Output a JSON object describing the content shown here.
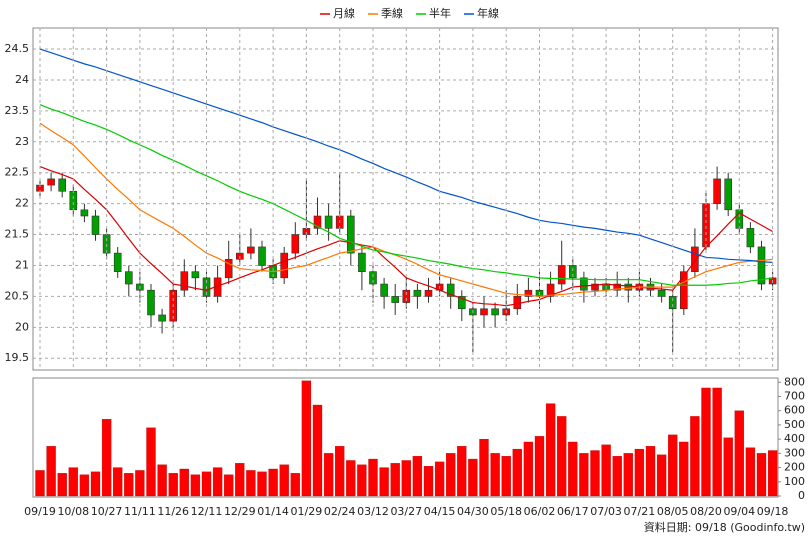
{
  "chart_data": [
    {
      "type": "candlestick",
      "open": [
        22.2,
        22.3,
        22.4,
        22.2,
        21.9,
        21.8,
        21.5,
        21.2,
        20.9,
        20.7,
        20.6,
        20.2,
        20.1,
        20.6,
        20.9,
        20.8,
        20.5,
        20.8,
        21.1,
        21.2,
        21.3,
        21.0,
        20.8,
        21.2,
        21.5,
        21.6,
        21.8,
        21.6,
        21.8,
        21.2,
        20.9,
        20.7,
        20.5,
        20.4,
        20.6,
        20.5,
        20.6,
        20.7,
        20.5,
        20.3,
        20.2,
        20.3,
        20.2,
        20.3,
        20.5,
        20.6,
        20.5,
        20.7,
        21.0,
        20.8,
        20.6,
        20.7,
        20.6,
        20.7,
        20.6,
        20.7,
        20.6,
        20.5,
        20.3,
        20.9,
        21.3,
        22.0,
        22.4,
        21.9,
        21.6,
        21.3,
        20.7
      ],
      "high": [
        22.4,
        22.5,
        22.5,
        22.3,
        22.0,
        21.9,
        21.6,
        21.3,
        21.0,
        20.9,
        20.7,
        20.3,
        20.7,
        21.1,
        21.0,
        20.9,
        21.0,
        21.4,
        21.5,
        21.6,
        21.4,
        21.1,
        21.3,
        21.7,
        22.4,
        22.1,
        22.0,
        22.5,
        21.9,
        21.3,
        21.0,
        20.8,
        20.7,
        20.8,
        20.7,
        20.8,
        20.9,
        20.8,
        20.6,
        20.4,
        20.5,
        20.4,
        20.6,
        20.7,
        20.8,
        20.9,
        20.9,
        21.4,
        21.1,
        20.9,
        20.8,
        20.8,
        20.9,
        20.8,
        20.9,
        20.8,
        20.7,
        20.6,
        21.0,
        21.6,
        22.2,
        22.6,
        22.5,
        22.0,
        21.7,
        21.4,
        20.9
      ],
      "low": [
        22.1,
        22.2,
        22.1,
        21.8,
        21.7,
        21.4,
        21.1,
        20.8,
        20.5,
        20.4,
        20.0,
        19.9,
        20.0,
        20.5,
        20.6,
        20.4,
        20.4,
        20.7,
        21.0,
        21.1,
        20.9,
        20.7,
        20.7,
        21.1,
        21.4,
        21.5,
        21.4,
        21.5,
        21.0,
        20.6,
        20.4,
        20.3,
        20.2,
        20.3,
        20.3,
        20.4,
        20.5,
        20.3,
        20.1,
        19.6,
        20.0,
        20.0,
        20.1,
        20.2,
        20.4,
        20.3,
        20.4,
        20.6,
        20.6,
        20.4,
        20.5,
        20.5,
        20.5,
        20.4,
        20.5,
        20.5,
        20.4,
        19.6,
        20.2,
        20.8,
        21.2,
        21.9,
        21.8,
        21.5,
        21.2,
        20.6,
        20.6
      ],
      "close": [
        22.3,
        22.4,
        22.2,
        21.9,
        21.8,
        21.5,
        21.2,
        20.9,
        20.7,
        20.6,
        20.2,
        20.1,
        20.6,
        20.9,
        20.8,
        20.5,
        20.8,
        21.1,
        21.2,
        21.3,
        21.0,
        20.8,
        21.2,
        21.5,
        21.6,
        21.8,
        21.6,
        21.8,
        21.2,
        20.9,
        20.7,
        20.5,
        20.4,
        20.6,
        20.5,
        20.6,
        20.7,
        20.5,
        20.3,
        20.2,
        20.3,
        20.2,
        20.3,
        20.5,
        20.6,
        20.5,
        20.7,
        21.0,
        20.8,
        20.6,
        20.7,
        20.6,
        20.7,
        20.6,
        20.7,
        20.6,
        20.5,
        20.3,
        20.9,
        21.3,
        22.0,
        22.4,
        21.9,
        21.6,
        21.3,
        20.7,
        20.8
      ],
      "up_color": "#ff0000",
      "down_color": "#00a000",
      "series": [
        {
          "name": "月線",
          "color": "#dd0000",
          "values": [
            22.6,
            22.53,
            22.47,
            22.4,
            22.23,
            22.07,
            21.9,
            21.67,
            21.43,
            21.2,
            21.03,
            20.87,
            20.7,
            20.67,
            20.63,
            20.6,
            20.67,
            20.73,
            20.8,
            20.87,
            20.93,
            21.0,
            21.07,
            21.13,
            21.2,
            21.27,
            21.33,
            21.4,
            21.37,
            21.33,
            21.3,
            21.13,
            20.97,
            20.8,
            20.73,
            20.67,
            20.6,
            20.53,
            20.47,
            20.4,
            20.38,
            20.37,
            20.35,
            20.38,
            20.42,
            20.45,
            20.52,
            20.58,
            20.65,
            20.67,
            20.68,
            20.7,
            20.68,
            20.67,
            20.65,
            20.63,
            20.62,
            20.6,
            20.83,
            21.07,
            21.3,
            21.48,
            21.67,
            21.85,
            21.75,
            21.65,
            21.55
          ]
        },
        {
          "name": "季線",
          "color": "#ff7700",
          "values": [
            23.3,
            23.18,
            23.07,
            22.95,
            22.77,
            22.58,
            22.4,
            22.23,
            22.07,
            21.9,
            21.8,
            21.7,
            21.6,
            21.47,
            21.33,
            21.2,
            21.12,
            21.03,
            20.95,
            20.93,
            20.92,
            20.9,
            20.93,
            20.97,
            21.0,
            21.07,
            21.13,
            21.2,
            21.23,
            21.27,
            21.3,
            21.23,
            21.17,
            21.1,
            21.02,
            20.93,
            20.85,
            20.8,
            20.75,
            20.7,
            20.65,
            20.6,
            20.55,
            20.53,
            20.52,
            20.5,
            20.52,
            20.53,
            20.55,
            20.57,
            20.58,
            20.6,
            20.62,
            20.63,
            20.65,
            20.65,
            20.65,
            20.65,
            20.73,
            20.82,
            20.9,
            20.95,
            21.0,
            21.05,
            21.07,
            21.08,
            21.1
          ]
        },
        {
          "name": "半年",
          "color": "#00cc00",
          "values": [
            23.6,
            23.53,
            23.47,
            23.4,
            23.33,
            23.27,
            23.2,
            23.12,
            23.03,
            22.95,
            22.87,
            22.78,
            22.7,
            22.62,
            22.53,
            22.45,
            22.37,
            22.28,
            22.2,
            22.13,
            22.07,
            22.0,
            21.91,
            21.82,
            21.73,
            21.63,
            21.54,
            21.44,
            21.38,
            21.31,
            21.25,
            21.22,
            21.18,
            21.15,
            21.12,
            21.08,
            21.05,
            21.02,
            20.98,
            20.95,
            20.93,
            20.9,
            20.88,
            20.85,
            20.83,
            20.8,
            20.79,
            20.79,
            20.78,
            20.78,
            20.77,
            20.77,
            20.77,
            20.77,
            20.77,
            20.74,
            20.71,
            20.68,
            20.68,
            20.68,
            20.68,
            20.69,
            20.71,
            20.72,
            20.75,
            20.77,
            20.8
          ]
        },
        {
          "name": "年線",
          "color": "#0055cc",
          "values": [
            24.5,
            24.44,
            24.38,
            24.32,
            24.26,
            24.21,
            24.15,
            24.09,
            24.03,
            23.97,
            23.91,
            23.85,
            23.79,
            23.73,
            23.67,
            23.61,
            23.55,
            23.49,
            23.43,
            23.37,
            23.31,
            23.24,
            23.18,
            23.12,
            23.06,
            23.0,
            22.93,
            22.87,
            22.8,
            22.72,
            22.65,
            22.57,
            22.5,
            22.43,
            22.35,
            22.28,
            22.2,
            22.15,
            22.1,
            22.04,
            21.99,
            21.94,
            21.89,
            21.84,
            21.78,
            21.73,
            21.7,
            21.68,
            21.65,
            21.62,
            21.6,
            21.57,
            21.54,
            21.52,
            21.49,
            21.43,
            21.37,
            21.31,
            21.25,
            21.19,
            21.13,
            21.12,
            21.1,
            21.09,
            21.08,
            21.06,
            21.05
          ]
        }
      ],
      "ylim": [
        19.31,
        24.84
      ],
      "yticks": [
        19.5,
        20,
        20.5,
        21,
        21.5,
        22,
        22.5,
        23,
        23.5,
        24,
        24.5
      ],
      "grid": true
    },
    {
      "type": "bar",
      "categories": [
        "09/19",
        null,
        null,
        "10/08",
        null,
        null,
        "10/27",
        null,
        null,
        "11/11",
        null,
        null,
        "11/26",
        null,
        null,
        "12/11",
        null,
        null,
        "12/29",
        null,
        null,
        "01/14",
        null,
        null,
        "01/29",
        null,
        null,
        "02/24",
        null,
        null,
        "03/12",
        null,
        null,
        "03/27",
        null,
        null,
        "04/15",
        null,
        null,
        "04/30",
        null,
        null,
        "05/18",
        null,
        null,
        "06/02",
        null,
        null,
        "06/17",
        null,
        null,
        "07/03",
        null,
        null,
        "07/21",
        null,
        null,
        "08/05",
        null,
        null,
        "08/20",
        null,
        null,
        "09/04",
        null,
        null,
        "09/18"
      ],
      "values": [
        180,
        350,
        160,
        200,
        150,
        170,
        540,
        200,
        160,
        180,
        480,
        220,
        160,
        190,
        150,
        170,
        200,
        150,
        230,
        180,
        170,
        190,
        220,
        160,
        810,
        640,
        300,
        350,
        250,
        220,
        260,
        200,
        230,
        250,
        280,
        210,
        240,
        300,
        350,
        260,
        400,
        300,
        280,
        330,
        380,
        420,
        650,
        560,
        380,
        300,
        320,
        360,
        280,
        300,
        330,
        350,
        290,
        430,
        380,
        560,
        760,
        760,
        410,
        600,
        340,
        300,
        320
      ],
      "color": "#ff0000",
      "ylim": [
        0,
        830
      ],
      "yticks": [
        0,
        100,
        200,
        300,
        400,
        500,
        600,
        700,
        800
      ]
    }
  ],
  "footer": "資料日期: 09/18  (Goodinfo.tw)"
}
